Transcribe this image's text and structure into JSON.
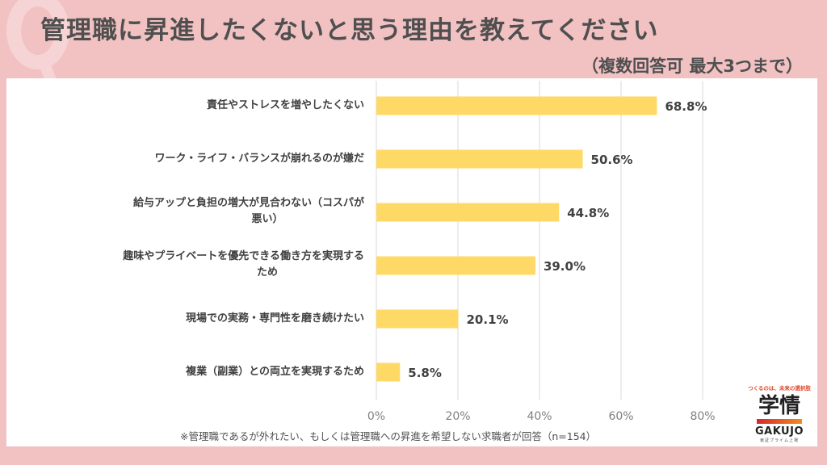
{
  "header": {
    "watermark_letter": "Q",
    "title": "管理職に昇進したくないと思う理由を教えてください",
    "subtitle": "（複数回答可 最大3つまで）"
  },
  "chart_data": {
    "type": "bar",
    "orientation": "horizontal",
    "title": "管理職に昇進したくないと思う理由を教えてください",
    "subtitle": "（複数回答可 最大3つまで）",
    "categories": [
      [
        "責任やストレスを増やしたくない"
      ],
      [
        "ワーク・ライフ・バランスが崩れるのが嫌だ"
      ],
      [
        "給与アップと負担の増大が見合わない（コスパが",
        "悪い）"
      ],
      [
        "趣味やプライベートを優先できる働き方を実現する",
        "ため"
      ],
      [
        "現場での実務・専門性を磨き続けたい"
      ],
      [
        "複業（副業）との両立を実現するため"
      ]
    ],
    "values": [
      68.8,
      50.6,
      44.8,
      39.0,
      20.1,
      5.8
    ],
    "value_labels": [
      "68.8%",
      "50.6%",
      "44.8%",
      "39.0%",
      "20.1%",
      "5.8%"
    ],
    "xlim": [
      0,
      80
    ],
    "xticks": [
      0,
      20,
      40,
      60,
      80
    ],
    "xtick_labels": [
      "0%",
      "20%",
      "40%",
      "60%",
      "80%"
    ],
    "xlabel": "",
    "ylabel": "",
    "grid": true,
    "legend": "none",
    "bar_color": "#ffd966"
  },
  "footnote": "※管理職であるが外れたい、もしくは管理職への昇進を希望しない求職者が回答（n=154）",
  "logo": {
    "tagline": "つくるのは、未来の選択肢",
    "kanji": "学情",
    "name": "GAKUJO",
    "sub": "東証プライム上場"
  },
  "colors": {
    "background": "#f2c2c3",
    "panel": "#ffffff",
    "bar": "#ffd966",
    "text": "#4f4f4f",
    "grid": "#d9d9d9"
  }
}
